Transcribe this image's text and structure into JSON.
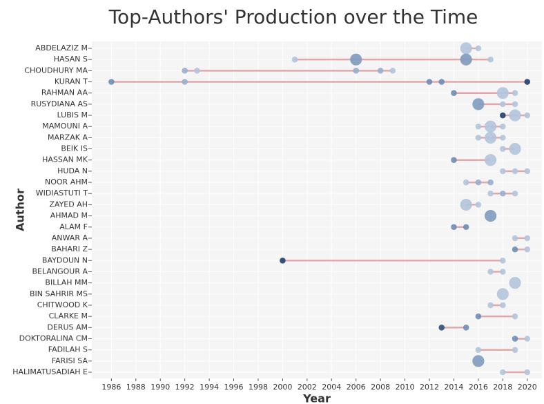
{
  "chart_data": {
    "type": "author-timeline",
    "title": "Top-Authors' Production over the Time",
    "xlabel": "Year",
    "ylabel": "Author",
    "categories": [
      "ABDELAZIZ M",
      "HASAN S",
      "CHOUDHURY MA",
      "KURAN T",
      "RAHMAN AA",
      "RUSYDIANA AS",
      "LUBIS M",
      "MAMOUNI A",
      "MARZAK A",
      "BEIK IS",
      "HASSAN MK",
      "HUDA N",
      "NOOR AHM",
      "WIDIASTUTI T",
      "ZAYED AH",
      "AHMAD M",
      "ALAM F",
      "ANWAR A",
      "BAHARI Z",
      "BAYDOUN N",
      "BELANGOUR A",
      "BILLAH MM",
      "BIN SAHRIR MS",
      "CHITWOOD K",
      "CLARKE M",
      "DERUS AM",
      "DOKTORALINA CM",
      "FADILAH S",
      "FARISI SA",
      "HALIMATUSADIAH E"
    ],
    "production": [
      {
        "years": [
          2015,
          2016
        ],
        "articles": [
          2,
          1
        ],
        "colors": [
          "#b3c4dc",
          "#b3c4dc"
        ]
      },
      {
        "years": [
          2001,
          2006,
          2015,
          2017
        ],
        "articles": [
          1,
          2,
          2,
          1
        ],
        "colors": [
          "#b3c4dc",
          "#7f9bbf",
          "#7f9bbf",
          "#b3c4dc"
        ]
      },
      {
        "years": [
          1992,
          1993,
          2006,
          2008,
          2009
        ],
        "articles": [
          1,
          1,
          1,
          1,
          1
        ],
        "colors": [
          "#98afcd",
          "#b3c4dc",
          "#98afcd",
          "#98afcd",
          "#b3c4dc"
        ]
      },
      {
        "years": [
          1986,
          1992,
          2012,
          2013,
          2020
        ],
        "articles": [
          1,
          1,
          1,
          1,
          1
        ],
        "colors": [
          "#6f8db5",
          "#98afcd",
          "#6f8db5",
          "#6f8db5",
          "#1f3f6e"
        ]
      },
      {
        "years": [
          2014,
          2018,
          2019
        ],
        "articles": [
          1,
          2,
          1
        ],
        "colors": [
          "#6f8db5",
          "#b3c4dc",
          "#b3c4dc"
        ]
      },
      {
        "years": [
          2016,
          2018,
          2019
        ],
        "articles": [
          2,
          1,
          1
        ],
        "colors": [
          "#7f9bbf",
          "#b3c4dc",
          "#b3c4dc"
        ]
      },
      {
        "years": [
          2018,
          2019,
          2020
        ],
        "articles": [
          1,
          2,
          1
        ],
        "colors": [
          "#1f3f6e",
          "#b3c4dc",
          "#b3c4dc"
        ]
      },
      {
        "years": [
          2016,
          2017,
          2018
        ],
        "articles": [
          1,
          2,
          1
        ],
        "colors": [
          "#b3c4dc",
          "#b3c4dc",
          "#b3c4dc"
        ]
      },
      {
        "years": [
          2016,
          2017,
          2018
        ],
        "articles": [
          1,
          2,
          1
        ],
        "colors": [
          "#b3c4dc",
          "#b3c4dc",
          "#b3c4dc"
        ]
      },
      {
        "years": [
          2018,
          2019
        ],
        "articles": [
          1,
          2
        ],
        "colors": [
          "#b3c4dc",
          "#b3c4dc"
        ]
      },
      {
        "years": [
          2014,
          2017
        ],
        "articles": [
          1,
          2
        ],
        "colors": [
          "#6f8db5",
          "#b3c4dc"
        ]
      },
      {
        "years": [
          2018,
          2019,
          2020
        ],
        "articles": [
          1,
          1,
          1
        ],
        "colors": [
          "#b3c4dc",
          "#b3c4dc",
          "#b3c4dc"
        ]
      },
      {
        "years": [
          2015,
          2016,
          2017
        ],
        "articles": [
          1,
          1,
          1
        ],
        "colors": [
          "#b3c4dc",
          "#98afcd",
          "#98afcd"
        ]
      },
      {
        "years": [
          2017,
          2018,
          2019
        ],
        "articles": [
          1,
          1,
          1
        ],
        "colors": [
          "#b3c4dc",
          "#98afcd",
          "#b3c4dc"
        ]
      },
      {
        "years": [
          2015,
          2016
        ],
        "articles": [
          2,
          1
        ],
        "colors": [
          "#b3c4dc",
          "#b3c4dc"
        ]
      },
      {
        "years": [
          2017
        ],
        "articles": [
          2
        ],
        "colors": [
          "#7f9bbf"
        ]
      },
      {
        "years": [
          2014,
          2015
        ],
        "articles": [
          1,
          1
        ],
        "colors": [
          "#6f8db5",
          "#6f8db5"
        ]
      },
      {
        "years": [
          2019,
          2020
        ],
        "articles": [
          1,
          1
        ],
        "colors": [
          "#b3c4dc",
          "#b3c4dc"
        ]
      },
      {
        "years": [
          2019,
          2020
        ],
        "articles": [
          1,
          1
        ],
        "colors": [
          "#6f8db5",
          "#b3c4dc"
        ]
      },
      {
        "years": [
          2000,
          2018
        ],
        "articles": [
          1,
          1
        ],
        "colors": [
          "#1f3f6e",
          "#b3c4dc"
        ]
      },
      {
        "years": [
          2017,
          2018
        ],
        "articles": [
          1,
          1
        ],
        "colors": [
          "#b3c4dc",
          "#b3c4dc"
        ]
      },
      {
        "years": [
          2019
        ],
        "articles": [
          2
        ],
        "colors": [
          "#b3c4dc"
        ]
      },
      {
        "years": [
          2018
        ],
        "articles": [
          2
        ],
        "colors": [
          "#b3c4dc"
        ]
      },
      {
        "years": [
          2017,
          2018
        ],
        "articles": [
          1,
          1
        ],
        "colors": [
          "#b3c4dc",
          "#b3c4dc"
        ]
      },
      {
        "years": [
          2016,
          2019
        ],
        "articles": [
          1,
          1
        ],
        "colors": [
          "#6f8db5",
          "#b3c4dc"
        ]
      },
      {
        "years": [
          2013,
          2015
        ],
        "articles": [
          1,
          1
        ],
        "colors": [
          "#2f4f7e",
          "#6f8db5"
        ]
      },
      {
        "years": [
          2019,
          2020
        ],
        "articles": [
          1,
          1
        ],
        "colors": [
          "#6f8db5",
          "#b3c4dc"
        ]
      },
      {
        "years": [
          2016,
          2019
        ],
        "articles": [
          1,
          1
        ],
        "colors": [
          "#b3c4dc",
          "#b3c4dc"
        ]
      },
      {
        "years": [
          2016
        ],
        "articles": [
          2
        ],
        "colors": [
          "#7f9bbf"
        ]
      },
      {
        "years": [
          2018,
          2020
        ],
        "articles": [
          1,
          1
        ],
        "colors": [
          "#b3c4dc",
          "#b3c4dc"
        ]
      }
    ],
    "line_color": "#e3a7aa",
    "xlim": [
      1984.4,
      2021.2
    ],
    "xticks": [
      1986,
      1988,
      1990,
      1992,
      1994,
      1996,
      1998,
      2000,
      2002,
      2004,
      2006,
      2008,
      2010,
      2012,
      2014,
      2016,
      2018,
      2020
    ],
    "grid": true
  }
}
